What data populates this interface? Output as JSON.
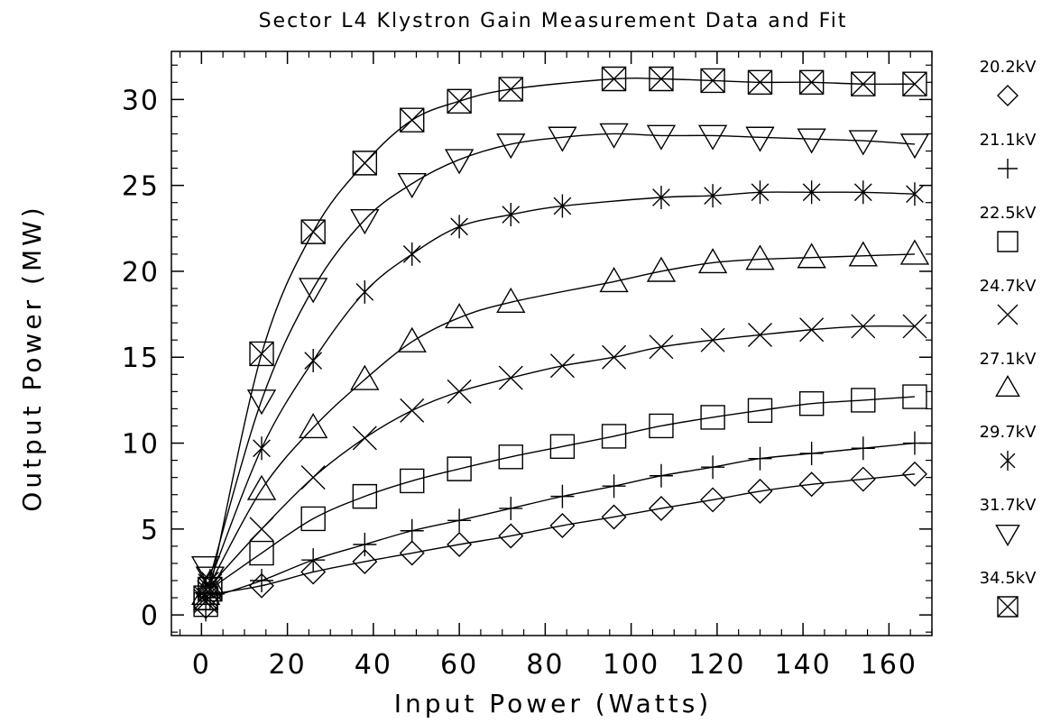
{
  "chart_data": {
    "type": "scatter",
    "title": "Sector L4 Klystron Gain Measurement Data and Fit",
    "xlabel": "Input Power (Watts)",
    "ylabel": "Output Power (MW)",
    "xlim": [
      -7,
      170
    ],
    "ylim": [
      -1.2,
      32.8
    ],
    "xticks": [
      0,
      20,
      40,
      60,
      80,
      100,
      120,
      140,
      160
    ],
    "yticks": [
      0,
      5,
      10,
      15,
      20,
      25,
      30
    ],
    "grid": false,
    "legend_position": "right",
    "x": [
      1,
      2,
      14,
      26,
      38,
      49,
      60,
      72,
      84,
      96,
      107,
      119,
      130,
      142,
      154,
      166
    ],
    "series": [
      {
        "name": "20.2kV",
        "marker": "diamond",
        "values": [
          0.5,
          1.2,
          1.7,
          2.5,
          3.1,
          3.6,
          4.1,
          4.6,
          5.2,
          5.7,
          6.2,
          6.7,
          7.2,
          7.6,
          7.9,
          8.2
        ]
      },
      {
        "name": "21.1kV",
        "marker": "plus",
        "values": [
          0.3,
          1.0,
          2.0,
          3.2,
          4.1,
          4.9,
          5.5,
          6.2,
          6.9,
          7.5,
          8.1,
          8.6,
          9.1,
          9.4,
          9.7,
          10.0
        ]
      },
      {
        "name": "22.5kV",
        "marker": "square",
        "values": [
          0.6,
          1.5,
          3.6,
          5.6,
          6.9,
          7.8,
          8.5,
          9.2,
          9.8,
          10.4,
          11.0,
          11.5,
          11.9,
          12.3,
          12.5,
          12.7
        ]
      },
      {
        "name": "24.7kV",
        "marker": "x",
        "values": [
          0.8,
          1.7,
          5.0,
          8.0,
          10.3,
          11.9,
          13.0,
          13.8,
          14.5,
          15.0,
          15.6,
          16.0,
          16.3,
          16.6,
          16.8,
          16.8
        ]
      },
      {
        "name": "27.1kV",
        "marker": "triangle-up",
        "values": [
          1.2,
          1.8,
          7.3,
          10.9,
          13.7,
          15.9,
          17.3,
          18.2,
          null,
          19.4,
          20.0,
          20.5,
          20.7,
          20.8,
          20.9,
          21.0
        ]
      },
      {
        "name": "29.7kV",
        "marker": "asterisk",
        "values": [
          1.5,
          2.0,
          9.7,
          14.8,
          18.8,
          21.0,
          22.6,
          23.3,
          23.8,
          null,
          24.3,
          24.4,
          24.6,
          24.6,
          24.6,
          24.5
        ]
      },
      {
        "name": "31.7kV",
        "marker": "triangle-down",
        "values": [
          2.8,
          2.2,
          12.5,
          19.0,
          23.0,
          25.1,
          26.5,
          27.4,
          27.8,
          28.0,
          27.9,
          27.9,
          27.8,
          27.7,
          27.6,
          27.4
        ]
      },
      {
        "name": "34.5kV",
        "marker": "bowtie",
        "values": [
          1.0,
          1.5,
          15.2,
          22.3,
          26.3,
          28.8,
          29.9,
          30.6,
          null,
          31.2,
          31.2,
          31.1,
          31.0,
          31.0,
          30.9,
          30.9
        ]
      }
    ]
  }
}
